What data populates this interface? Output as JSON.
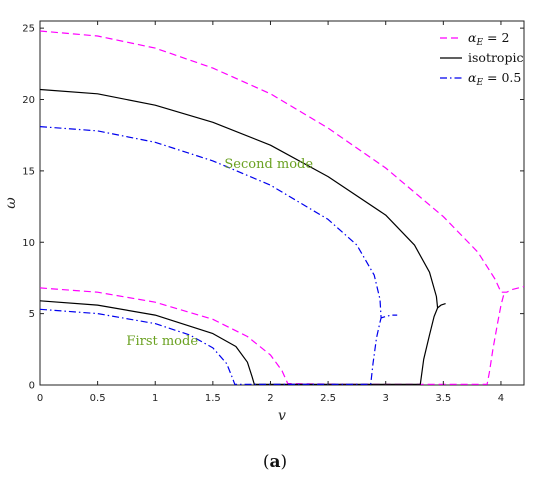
{
  "chart_data": {
    "type": "line",
    "title": "",
    "xlabel": "v",
    "ylabel": "ω",
    "xlim": [
      0,
      4.2
    ],
    "ylim": [
      0,
      25.5
    ],
    "xticks": [
      "0",
      "0.5",
      "1",
      "1.5",
      "2",
      "2.5",
      "3",
      "3.5",
      "4"
    ],
    "yticks": [
      "0",
      "5",
      "10",
      "15",
      "20",
      "25"
    ],
    "grid": false,
    "legend_position": "top-right",
    "colors": {
      "magenta": "#ff00ff",
      "black": "#000000",
      "blue": "#0000ee",
      "annotation": "#6aa121"
    },
    "legend": [
      {
        "label_base": "α",
        "label_sub": "E",
        "label_rest": " = 2",
        "style": "dashed",
        "color": "#ff00ff"
      },
      {
        "label_base": "isotropic",
        "label_sub": "",
        "label_rest": "",
        "style": "solid",
        "color": "#000000"
      },
      {
        "label_base": "α",
        "label_sub": "E",
        "label_rest": " = 0.5",
        "style": "dashdot",
        "color": "#0000ee"
      }
    ],
    "annotations": [
      {
        "text": "Second mode",
        "x": 1.6,
        "y": 15.2
      },
      {
        "text": "First mode",
        "x": 0.75,
        "y": 2.8
      }
    ],
    "series": [
      {
        "key": "alpha2_second",
        "color": "#ff00ff",
        "style": "dashed",
        "points": [
          [
            0,
            24.8
          ],
          [
            0.5,
            24.45
          ],
          [
            1.0,
            23.6
          ],
          [
            1.5,
            22.2
          ],
          [
            2.0,
            20.4
          ],
          [
            2.5,
            18.0
          ],
          [
            3.0,
            15.2
          ],
          [
            3.5,
            11.8
          ],
          [
            3.8,
            9.3
          ],
          [
            3.95,
            7.4
          ],
          [
            4.0,
            6.5
          ],
          [
            4.05,
            6.5
          ],
          [
            4.1,
            6.7
          ],
          [
            4.2,
            6.9
          ]
        ]
      },
      {
        "key": "alpha2_first",
        "color": "#ff00ff",
        "style": "dashed",
        "points": [
          [
            0,
            6.8
          ],
          [
            0.5,
            6.5
          ],
          [
            1.0,
            5.8
          ],
          [
            1.5,
            4.6
          ],
          [
            1.8,
            3.4
          ],
          [
            2.0,
            2.1
          ],
          [
            2.1,
            1.0
          ],
          [
            2.15,
            0.1
          ],
          [
            2.6,
            0.05
          ],
          [
            3.5,
            0.05
          ],
          [
            3.88,
            0.05
          ],
          [
            3.9,
            0.9
          ],
          [
            3.93,
            2.5
          ],
          [
            3.97,
            4.3
          ],
          [
            4.0,
            5.6
          ],
          [
            4.03,
            6.5
          ]
        ]
      },
      {
        "key": "iso_second",
        "color": "#000000",
        "style": "solid",
        "points": [
          [
            0,
            20.7
          ],
          [
            0.5,
            20.4
          ],
          [
            1.0,
            19.6
          ],
          [
            1.5,
            18.4
          ],
          [
            2.0,
            16.8
          ],
          [
            2.5,
            14.6
          ],
          [
            3.0,
            11.9
          ],
          [
            3.25,
            9.8
          ],
          [
            3.38,
            7.9
          ],
          [
            3.44,
            6.2
          ],
          [
            3.45,
            5.4
          ],
          [
            3.48,
            5.6
          ],
          [
            3.52,
            5.7
          ]
        ]
      },
      {
        "key": "iso_first",
        "color": "#000000",
        "style": "solid",
        "points": [
          [
            0,
            5.9
          ],
          [
            0.5,
            5.6
          ],
          [
            1.0,
            4.9
          ],
          [
            1.5,
            3.6
          ],
          [
            1.7,
            2.7
          ],
          [
            1.8,
            1.6
          ],
          [
            1.84,
            0.6
          ],
          [
            1.86,
            0.05
          ],
          [
            2.5,
            0.05
          ],
          [
            3.3,
            0.05
          ],
          [
            3.33,
            1.8
          ],
          [
            3.38,
            3.5
          ],
          [
            3.42,
            4.8
          ],
          [
            3.45,
            5.4
          ]
        ]
      },
      {
        "key": "alpha05_second",
        "color": "#0000ee",
        "style": "dashdot",
        "points": [
          [
            0,
            18.1
          ],
          [
            0.5,
            17.8
          ],
          [
            1.0,
            17.0
          ],
          [
            1.5,
            15.7
          ],
          [
            2.0,
            14.0
          ],
          [
            2.5,
            11.6
          ],
          [
            2.75,
            9.8
          ],
          [
            2.9,
            7.7
          ],
          [
            2.95,
            6.0
          ],
          [
            2.96,
            4.7
          ],
          [
            3.0,
            4.8
          ],
          [
            3.05,
            4.9
          ],
          [
            3.1,
            4.9
          ]
        ]
      },
      {
        "key": "alpha05_first",
        "color": "#0000ee",
        "style": "dashdot",
        "points": [
          [
            0,
            5.3
          ],
          [
            0.5,
            5.0
          ],
          [
            1.0,
            4.3
          ],
          [
            1.3,
            3.5
          ],
          [
            1.5,
            2.6
          ],
          [
            1.62,
            1.5
          ],
          [
            1.67,
            0.5
          ],
          [
            1.69,
            0.05
          ],
          [
            2.3,
            0.05
          ],
          [
            2.87,
            0.05
          ],
          [
            2.89,
            1.5
          ],
          [
            2.92,
            3.3
          ],
          [
            2.95,
            4.4
          ],
          [
            2.96,
            4.7
          ]
        ]
      }
    ]
  },
  "caption": {
    "open": "(",
    "letter": "a",
    "close": ")"
  }
}
